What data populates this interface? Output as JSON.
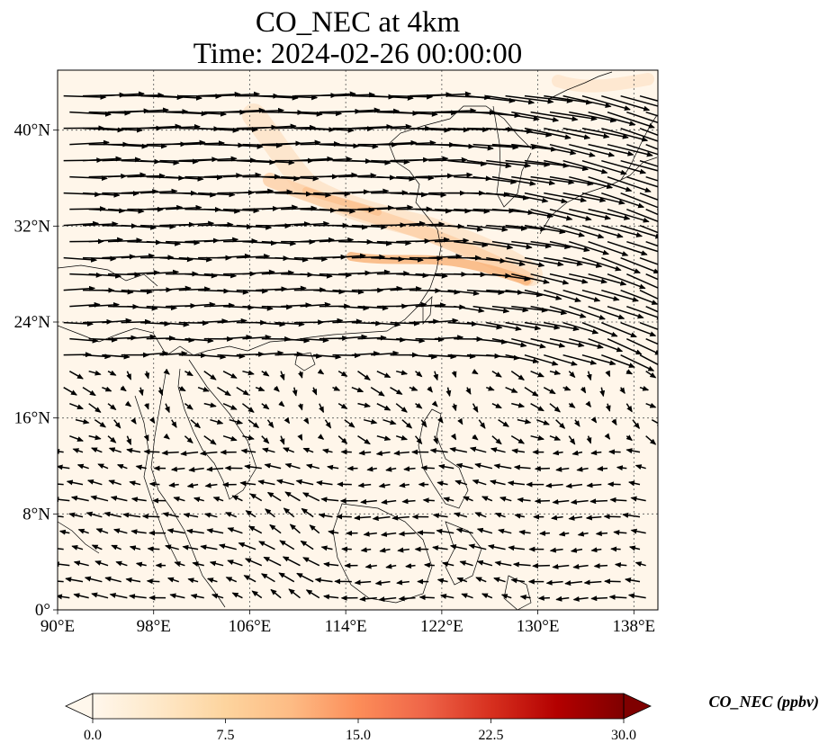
{
  "title": {
    "line1": "CO_NEC at 4km",
    "line2": "Time: 2024-02-26 00:00:00"
  },
  "map": {
    "lon_range": [
      90,
      140
    ],
    "lat_range": [
      0,
      45
    ],
    "lon_ticks": [
      {
        "value": 90,
        "label": "90°E"
      },
      {
        "value": 98,
        "label": "98°E"
      },
      {
        "value": 106,
        "label": "106°E"
      },
      {
        "value": 114,
        "label": "114°E"
      },
      {
        "value": 122,
        "label": "122°E"
      },
      {
        "value": 130,
        "label": "130°E"
      },
      {
        "value": 138,
        "label": "138°E"
      }
    ],
    "lat_ticks": [
      {
        "value": 0,
        "label": "0°"
      },
      {
        "value": 8,
        "label": "8°N"
      },
      {
        "value": 16,
        "label": "16°N"
      },
      {
        "value": 24,
        "label": "24°N"
      },
      {
        "value": 32,
        "label": "32°N"
      },
      {
        "value": 40,
        "label": "40°N"
      }
    ],
    "gridlines": true,
    "background_color": "#fff6ea",
    "plume_color": "#f9b57c"
  },
  "colorbar": {
    "label": "CO_NEC (ppbv)",
    "min": 0,
    "max": 30,
    "extend": "both",
    "colormap": "OrRd",
    "ticks": [
      {
        "value": 0,
        "label": "0.0"
      },
      {
        "value": 7.5,
        "label": "7.5"
      },
      {
        "value": 15,
        "label": "15.0"
      },
      {
        "value": 22.5,
        "label": "22.5"
      },
      {
        "value": 30,
        "label": "30.0"
      }
    ],
    "stops": [
      "#fff7ec",
      "#fee8c8",
      "#fdd49e",
      "#fdbb84",
      "#fc8d59",
      "#ef6548",
      "#d7301f",
      "#b30000",
      "#7f0000"
    ]
  }
}
